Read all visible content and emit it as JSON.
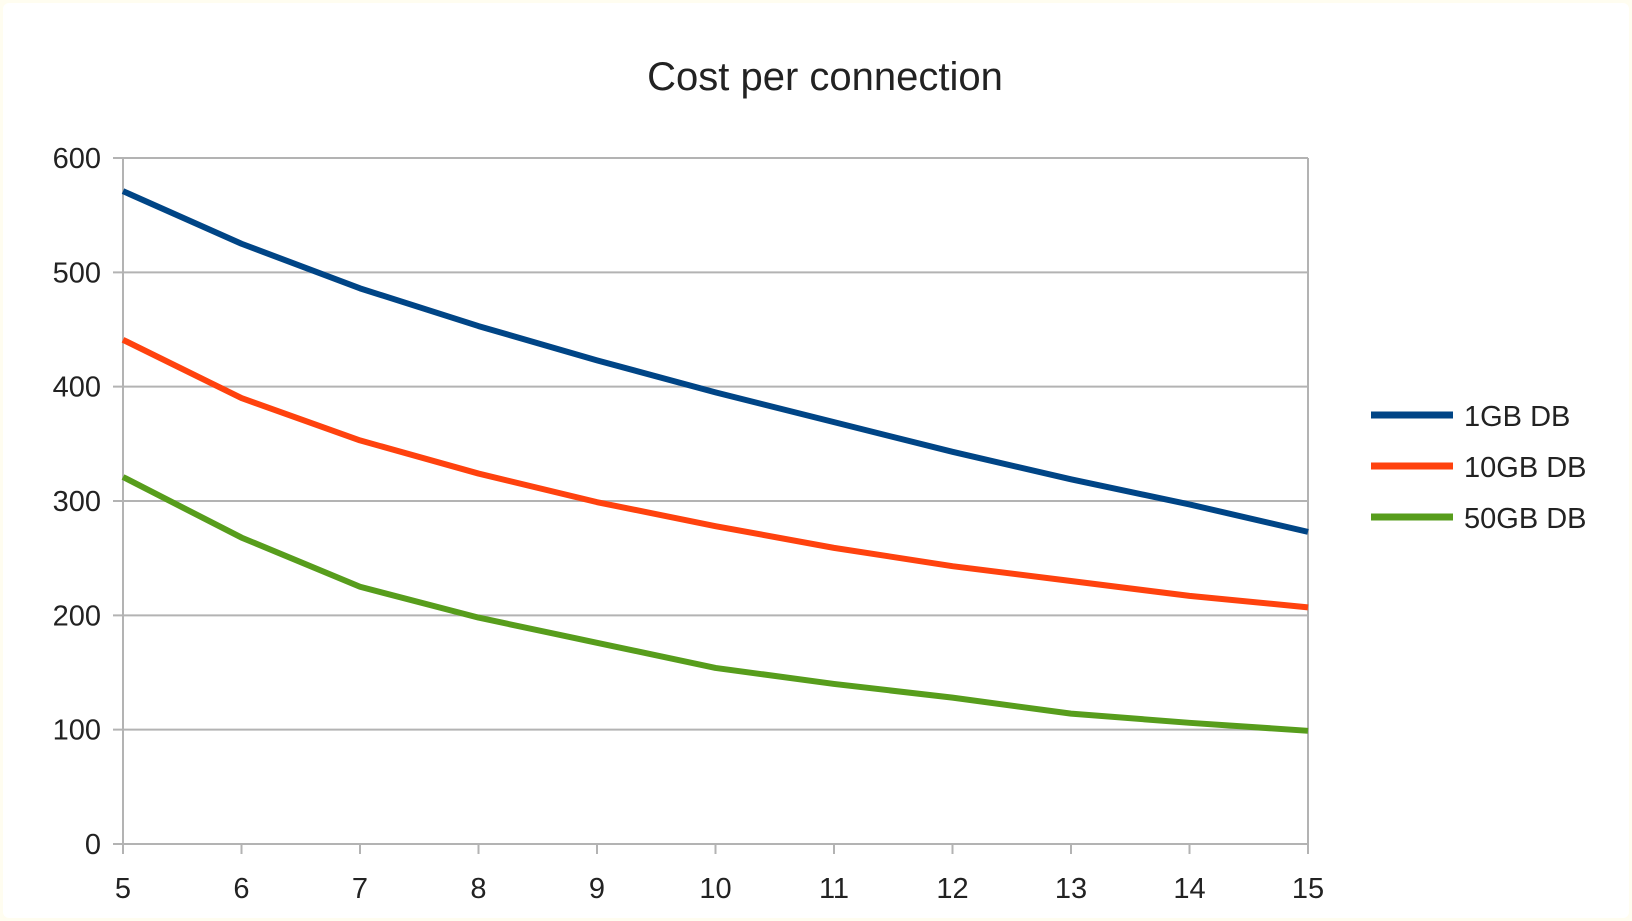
{
  "chart_data": {
    "type": "line",
    "title": "Cost per connection",
    "xlabel": "",
    "ylabel": "",
    "x": [
      5,
      6,
      7,
      8,
      9,
      10,
      11,
      12,
      13,
      14,
      15
    ],
    "xlim": [
      5,
      15
    ],
    "ylim": [
      0,
      600
    ],
    "yticks": [
      0,
      100,
      200,
      300,
      400,
      500,
      600
    ],
    "grid": true,
    "legend_position": "right",
    "series": [
      {
        "name": "1GB DB",
        "color": "#004586",
        "values": [
          571,
          525,
          486,
          453,
          423,
          395,
          369,
          343,
          319,
          297,
          273
        ]
      },
      {
        "name": "10GB DB",
        "color": "#ff420e",
        "values": [
          441,
          390,
          353,
          324,
          299,
          278,
          259,
          243,
          230,
          217,
          207
        ]
      },
      {
        "name": "50GB DB",
        "color": "#579d1c",
        "values": [
          321,
          268,
          225,
          198,
          176,
          154,
          140,
          128,
          114,
          106,
          99
        ]
      }
    ]
  }
}
